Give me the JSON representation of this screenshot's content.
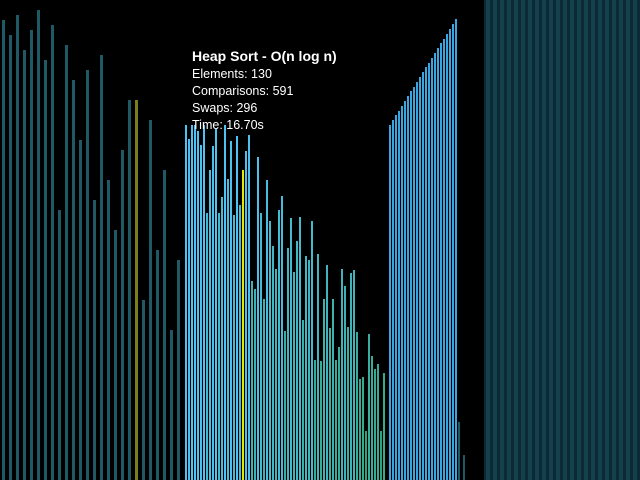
{
  "overlay": {
    "title": "Heap Sort - O(n log n)",
    "elements": "Elements: 130",
    "comparisons": "Comparisons: 591",
    "swaps": "Swaps: 296",
    "time": "Time: 16.70s"
  },
  "visualization": {
    "algorithm": "Heap Sort",
    "complexity": "O(n log n)",
    "element_count": 130,
    "comparisons": 591,
    "swaps": 296,
    "elapsed_seconds": 16.7,
    "colors": {
      "background": "#000000",
      "heap_gradient_top": "#4fc3f7",
      "heap_gradient_bottom": "#2e7d32",
      "highlight": "#e6e600",
      "sorted": "#29b6f6",
      "side_panel_bar": "#1d5a66",
      "side_panel_highlight": "#8a8a1a"
    }
  }
}
